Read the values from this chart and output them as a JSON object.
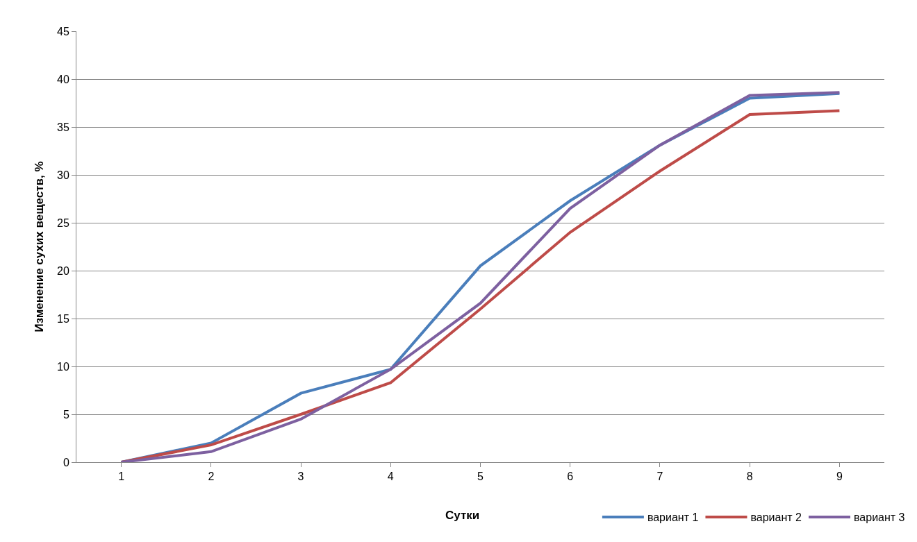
{
  "chart_data": {
    "type": "line",
    "xlabel": "Сутки",
    "ylabel": "Изменение сухих веществ, %",
    "categories": [
      "1",
      "2",
      "3",
      "4",
      "5",
      "6",
      "7",
      "8",
      "9"
    ],
    "series": [
      {
        "name": "вариант 1",
        "color": "#4a7ebb",
        "values": [
          0,
          2.0,
          7.2,
          9.7,
          20.5,
          27.3,
          33.1,
          38.0,
          38.5
        ]
      },
      {
        "name": "вариант 2",
        "color": "#be4b48",
        "values": [
          0,
          1.8,
          5.0,
          8.3,
          16.0,
          24.0,
          30.4,
          36.3,
          36.7
        ]
      },
      {
        "name": "вариант 3",
        "color": "#7d60a0",
        "values": [
          0,
          1.1,
          4.5,
          9.7,
          16.6,
          26.5,
          33.1,
          38.3,
          38.6
        ]
      }
    ],
    "ylim": [
      0,
      45
    ],
    "yticks": [
      0,
      5,
      10,
      15,
      20,
      25,
      30,
      35,
      40,
      45
    ],
    "grid": "y",
    "legend": "bottom right",
    "marker": "none",
    "line_style": "solid"
  }
}
